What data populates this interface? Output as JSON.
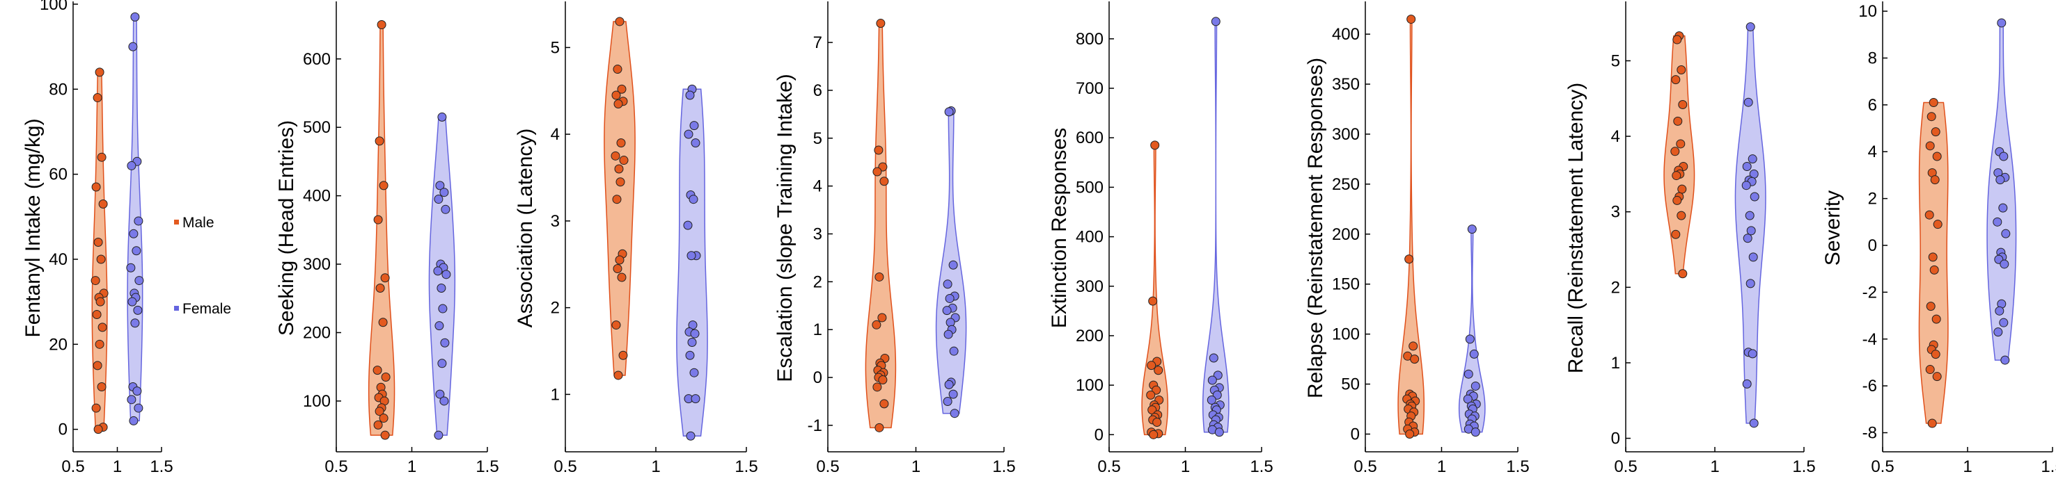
{
  "legend": {
    "male_label": "Male",
    "female_label": "Female"
  },
  "colors": {
    "male_fill": "#f4b995",
    "male_edge": "#e0501b",
    "male_point": "#e35a1f",
    "female_fill": "#c9c9f4",
    "female_edge": "#6565df",
    "female_point": "#7a7ae8",
    "point_stroke": "#222222"
  },
  "chart_data": [
    {
      "type": "scatter",
      "subtype": "violin",
      "ylabel": "Fentanyl Intake (mg/kg)",
      "xlim": [
        0.5,
        1.5
      ],
      "xticks": [
        "0.5",
        "1",
        "1.5"
      ],
      "ylim": [
        -3,
        100
      ],
      "yticks": [
        0,
        20,
        40,
        60,
        80,
        100
      ],
      "ytick_labels": [
        "0",
        "20",
        "40",
        "60",
        "80",
        "100"
      ],
      "series": [
        {
          "name": "Male",
          "x": 0.8,
          "values": [
            84,
            78,
            64,
            57,
            53,
            44,
            40,
            35,
            32,
            31,
            30,
            27,
            24,
            20,
            15,
            10,
            5,
            0.5,
            0
          ]
        },
        {
          "name": "Female",
          "x": 1.2,
          "values": [
            97,
            90,
            63,
            62,
            49,
            46,
            42,
            38,
            35,
            32,
            31,
            30,
            28,
            25,
            10,
            9,
            7,
            5,
            2
          ]
        }
      ]
    },
    {
      "type": "scatter",
      "subtype": "violin",
      "ylabel": "Seeking (Head Entries)",
      "xlim": [
        0.5,
        1.5
      ],
      "xticks": [
        "0.5",
        "1",
        "1.5"
      ],
      "ylim": [
        40,
        680
      ],
      "yticks": [
        100,
        200,
        300,
        400,
        500,
        600
      ],
      "ytick_labels": [
        "100",
        "200",
        "300",
        "400",
        "500",
        "600"
      ],
      "series": [
        {
          "name": "Male",
          "x": 0.8,
          "values": [
            650,
            480,
            415,
            365,
            280,
            265,
            215,
            145,
            135,
            120,
            110,
            105,
            100,
            90,
            85,
            75,
            65,
            50
          ]
        },
        {
          "name": "Female",
          "x": 1.2,
          "values": [
            515,
            415,
            405,
            395,
            380,
            300,
            295,
            290,
            285,
            265,
            235,
            210,
            185,
            155,
            110,
            100,
            50
          ]
        }
      ]
    },
    {
      "type": "scatter",
      "subtype": "violin",
      "ylabel": "Association (Latency)",
      "xlim": [
        0.5,
        1.5
      ],
      "xticks": [
        "0.5",
        "1",
        "1.5"
      ],
      "ylim": [
        0.45,
        5.5
      ],
      "yticks": [
        1,
        2,
        3,
        4,
        5
      ],
      "ytick_labels": [
        "1",
        "2",
        "3",
        "4",
        "5"
      ],
      "series": [
        {
          "name": "Male",
          "x": 0.8,
          "values": [
            5.3,
            4.75,
            4.52,
            4.45,
            4.38,
            4.35,
            3.9,
            3.75,
            3.7,
            3.6,
            3.45,
            3.25,
            2.62,
            2.55,
            2.45,
            2.35,
            1.8,
            1.45,
            1.22
          ]
        },
        {
          "name": "Female",
          "x": 1.2,
          "values": [
            4.52,
            4.45,
            4.1,
            4.0,
            3.9,
            3.3,
            3.25,
            2.95,
            2.6,
            2.6,
            1.8,
            1.72,
            1.7,
            1.6,
            1.45,
            1.25,
            0.95,
            0.95,
            0.52
          ]
        }
      ]
    },
    {
      "type": "scatter",
      "subtype": "violin",
      "ylabel": "Escalation (slope Training Intake)",
      "xlim": [
        0.5,
        1.5
      ],
      "xticks": [
        "0.5",
        "1",
        "1.5"
      ],
      "ylim": [
        -1.35,
        7.8
      ],
      "yticks": [
        -1,
        0,
        1,
        2,
        3,
        4,
        5,
        6,
        7
      ],
      "ytick_labels": [
        "-1",
        "0",
        "1",
        "2",
        "3",
        "4",
        "5",
        "6",
        "7"
      ],
      "series": [
        {
          "name": "Male",
          "x": 0.8,
          "values": [
            7.4,
            4.75,
            4.4,
            4.3,
            4.1,
            2.1,
            1.25,
            1.1,
            0.4,
            0.3,
            0.25,
            0.15,
            0.1,
            0.05,
            0.0,
            -0.05,
            -0.2,
            -0.55,
            -1.05
          ]
        },
        {
          "name": "Female",
          "x": 1.2,
          "values": [
            5.57,
            5.55,
            2.35,
            1.95,
            1.7,
            1.65,
            1.45,
            1.4,
            1.25,
            1.15,
            1.0,
            0.9,
            0.55,
            -0.1,
            -0.15,
            -0.35,
            -0.5,
            -0.75
          ]
        }
      ]
    },
    {
      "type": "scatter",
      "subtype": "violin",
      "ylabel": "Extinction Responses",
      "xlim": [
        0.5,
        1.5
      ],
      "xticks": [
        "0.5",
        "1",
        "1.5"
      ],
      "ylim": [
        -15,
        870
      ],
      "yticks": [
        0,
        100,
        200,
        300,
        400,
        500,
        600,
        700,
        800
      ],
      "ytick_labels": [
        "0",
        "100",
        "200",
        "300",
        "400",
        "500",
        "600",
        "700",
        "800"
      ],
      "series": [
        {
          "name": "Male",
          "x": 0.8,
          "values": [
            585,
            270,
            148,
            140,
            130,
            100,
            90,
            80,
            70,
            60,
            55,
            50,
            40,
            35,
            30,
            25,
            5,
            2,
            0
          ]
        },
        {
          "name": "Female",
          "x": 1.2,
          "values": [
            835,
            155,
            120,
            110,
            95,
            90,
            80,
            70,
            60,
            55,
            50,
            40,
            35,
            30,
            20,
            15,
            10,
            5
          ]
        }
      ]
    },
    {
      "type": "scatter",
      "subtype": "violin",
      "ylabel": "Relapse (Reinstatement Responses)",
      "xlim": [
        0.5,
        1.5
      ],
      "xticks": [
        "0.5",
        "1",
        "1.5"
      ],
      "ylim": [
        -8,
        430
      ],
      "yticks": [
        0,
        50,
        100,
        150,
        200,
        250,
        300,
        350,
        400
      ],
      "ytick_labels": [
        "0",
        "50",
        "100",
        "150",
        "200",
        "250",
        "300",
        "350",
        "400"
      ],
      "series": [
        {
          "name": "Male",
          "x": 0.8,
          "values": [
            415,
            175,
            88,
            78,
            75,
            40,
            38,
            35,
            33,
            30,
            28,
            25,
            22,
            18,
            12,
            8,
            5,
            2,
            0
          ]
        },
        {
          "name": "Female",
          "x": 1.2,
          "values": [
            205,
            95,
            80,
            60,
            48,
            40,
            38,
            35,
            30,
            28,
            25,
            20,
            18,
            15,
            10,
            8,
            5,
            2
          ]
        }
      ]
    },
    {
      "type": "scatter",
      "subtype": "violin",
      "ylabel": "Recall (Reinstatement Latency)",
      "xlim": [
        0.5,
        1.5
      ],
      "xticks": [
        "0.5",
        "1",
        "1.5"
      ],
      "ylim": [
        -0.05,
        5.75
      ],
      "yticks": [
        0,
        1,
        2,
        3,
        4,
        5
      ],
      "ytick_labels": [
        "0",
        "1",
        "2",
        "3",
        "4",
        "5"
      ],
      "series": [
        {
          "name": "Male",
          "x": 0.8,
          "values": [
            5.33,
            5.28,
            4.88,
            4.75,
            4.42,
            4.2,
            3.9,
            3.8,
            3.6,
            3.55,
            3.5,
            3.48,
            3.3,
            3.2,
            3.15,
            2.95,
            2.7,
            2.18
          ]
        },
        {
          "name": "Female",
          "x": 1.2,
          "values": [
            5.45,
            4.45,
            3.7,
            3.6,
            3.5,
            3.42,
            3.4,
            3.35,
            3.2,
            2.95,
            2.75,
            2.65,
            2.4,
            2.05,
            1.14,
            1.12,
            0.72,
            0.2
          ]
        }
      ]
    },
    {
      "type": "scatter",
      "subtype": "violin",
      "ylabel": "Severity",
      "xlim": [
        0.5,
        1.5
      ],
      "xticks": [
        "0.5",
        "1",
        "1.5"
      ],
      "ylim": [
        -8.4,
        10.3
      ],
      "yticks": [
        -8,
        -6,
        -4,
        -2,
        0,
        2,
        4,
        6,
        8,
        10
      ],
      "ytick_labels": [
        "-8",
        "-6",
        "-4",
        "-2",
        "0",
        "2",
        "4",
        "6",
        "8",
        "10"
      ],
      "series": [
        {
          "name": "Male",
          "x": 0.8,
          "values": [
            6.1,
            5.5,
            4.85,
            4.25,
            3.8,
            3.1,
            2.8,
            1.3,
            0.9,
            -0.5,
            -1.05,
            -2.6,
            -3.15,
            -4.25,
            -4.45,
            -4.65,
            -5.3,
            -5.6,
            -7.6
          ]
        },
        {
          "name": "Female",
          "x": 1.2,
          "values": [
            9.5,
            4.0,
            3.8,
            3.1,
            2.9,
            2.8,
            1.6,
            1.0,
            0.5,
            -0.3,
            -0.5,
            -0.6,
            -0.8,
            -2.5,
            -2.8,
            -3.3,
            -3.7,
            -4.9
          ]
        }
      ]
    }
  ]
}
